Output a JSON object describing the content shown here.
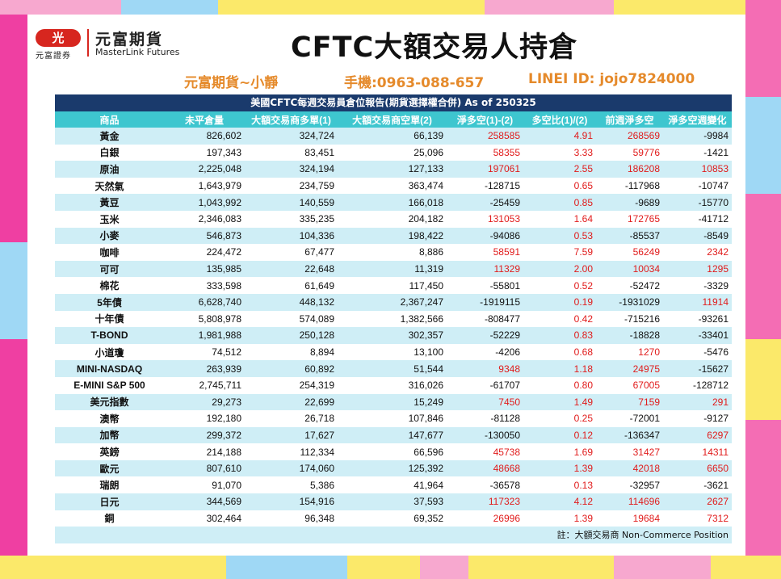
{
  "header": {
    "logo_cn": "元富期貨",
    "logo_en": "MasterLink Futures",
    "logo_badge": "光",
    "logo_sub": "元富證券",
    "title": "CFTC大額交易人持倉"
  },
  "contact": {
    "name": "元富期貨~小靜",
    "phone": "手機:0963-088-657",
    "line": "LINEI ID: jojo7824000"
  },
  "table": {
    "banner": "美國CFTC每週交易員倉位報告(期貨選擇權合併) As of  250325",
    "columns": [
      "商品",
      "未平倉量",
      "大額交易商多單(1)",
      "大額交易商空單(2)",
      "淨多空(1)-(2)",
      "多空比(1)/(2)",
      "前週淨多空",
      "淨多空週變化"
    ],
    "rows": [
      [
        "黃金",
        "826,602",
        "324,724",
        "66,139",
        "258585",
        "4.91",
        "268569",
        "-9984"
      ],
      [
        "白銀",
        "197,343",
        "83,451",
        "25,096",
        "58355",
        "3.33",
        "59776",
        "-1421"
      ],
      [
        "原油",
        "2,225,048",
        "324,194",
        "127,133",
        "197061",
        "2.55",
        "186208",
        "10853"
      ],
      [
        "天然氣",
        "1,643,979",
        "234,759",
        "363,474",
        "-128715",
        "0.65",
        "-117968",
        "-10747"
      ],
      [
        "黃豆",
        "1,043,992",
        "140,559",
        "166,018",
        "-25459",
        "0.85",
        "-9689",
        "-15770"
      ],
      [
        "玉米",
        "2,346,083",
        "335,235",
        "204,182",
        "131053",
        "1.64",
        "172765",
        "-41712"
      ],
      [
        "小麥",
        "546,873",
        "104,336",
        "198,422",
        "-94086",
        "0.53",
        "-85537",
        "-8549"
      ],
      [
        "咖啡",
        "224,472",
        "67,477",
        "8,886",
        "58591",
        "7.59",
        "56249",
        "2342"
      ],
      [
        "可可",
        "135,985",
        "22,648",
        "11,319",
        "11329",
        "2.00",
        "10034",
        "1295"
      ],
      [
        "棉花",
        "333,598",
        "61,649",
        "117,450",
        "-55801",
        "0.52",
        "-52472",
        "-3329"
      ],
      [
        "5年債",
        "6,628,740",
        "448,132",
        "2,367,247",
        "-1919115",
        "0.19",
        "-1931029",
        "11914"
      ],
      [
        "十年債",
        "5,808,978",
        "574,089",
        "1,382,566",
        "-808477",
        "0.42",
        "-715216",
        "-93261"
      ],
      [
        "T-BOND",
        "1,981,988",
        "250,128",
        "302,357",
        "-52229",
        "0.83",
        "-18828",
        "-33401"
      ],
      [
        "小道瓊",
        "74,512",
        "8,894",
        "13,100",
        "-4206",
        "0.68",
        "1270",
        "-5476"
      ],
      [
        "MINI-NASDAQ",
        "263,939",
        "60,892",
        "51,544",
        "9348",
        "1.18",
        "24975",
        "-15627"
      ],
      [
        "E-MINI S&P 500",
        "2,745,711",
        "254,319",
        "316,026",
        "-61707",
        "0.80",
        "67005",
        "-128712"
      ],
      [
        "美元指數",
        "29,273",
        "22,699",
        "15,249",
        "7450",
        "1.49",
        "7159",
        "291"
      ],
      [
        "澳幣",
        "192,180",
        "26,718",
        "107,846",
        "-81128",
        "0.25",
        "-72001",
        "-9127"
      ],
      [
        "加幣",
        "299,372",
        "17,627",
        "147,677",
        "-130050",
        "0.12",
        "-136347",
        "6297"
      ],
      [
        "英鎊",
        "214,188",
        "112,334",
        "66,596",
        "45738",
        "1.69",
        "31427",
        "14311"
      ],
      [
        "歐元",
        "807,610",
        "174,060",
        "125,392",
        "48668",
        "1.39",
        "42018",
        "6650"
      ],
      [
        "瑞朗",
        "91,070",
        "5,386",
        "41,964",
        "-36578",
        "0.13",
        "-32957",
        "-3621"
      ],
      [
        "日元",
        "344,569",
        "154,916",
        "37,593",
        "117323",
        "4.12",
        "114696",
        "2627"
      ],
      [
        "銅",
        "302,464",
        "96,348",
        "69,352",
        "26996",
        "1.39",
        "19684",
        "7312"
      ]
    ],
    "footnote": "註：大額交易商 Non-Commerce Position"
  },
  "colors": {
    "banner_bg": "#1a3a6c",
    "header_bg": "#3ec6cf",
    "stripe_bg": "#cfeef6",
    "positive": "#e11b1b",
    "negative": "#111111",
    "contact": "#e58a2b",
    "brand_red": "#d7261f"
  }
}
